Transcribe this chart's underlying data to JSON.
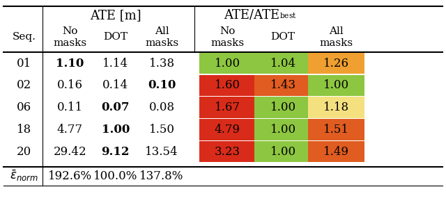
{
  "rows": [
    "01",
    "02",
    "06",
    "18",
    "20"
  ],
  "ate_values": [
    [
      "1.10",
      "1.14",
      "1.38"
    ],
    [
      "0.16",
      "0.14",
      "0.10"
    ],
    [
      "0.11",
      "0.07",
      "0.08"
    ],
    [
      "4.77",
      "1.00",
      "1.50"
    ],
    [
      "29.42",
      "9.12",
      "13.54"
    ]
  ],
  "ate_bold": [
    [
      true,
      false,
      false
    ],
    [
      false,
      false,
      true
    ],
    [
      false,
      true,
      false
    ],
    [
      false,
      true,
      false
    ],
    [
      false,
      true,
      false
    ]
  ],
  "ratio_values": [
    [
      "1.00",
      "1.04",
      "1.26"
    ],
    [
      "1.60",
      "1.43",
      "1.00"
    ],
    [
      "1.67",
      "1.00",
      "1.18"
    ],
    [
      "4.79",
      "1.00",
      "1.51"
    ],
    [
      "3.23",
      "1.00",
      "1.49"
    ]
  ],
  "ratio_colors": [
    [
      "#8dc640",
      "#8dc640",
      "#f0a030"
    ],
    [
      "#d92b1a",
      "#e05c20",
      "#8dc640"
    ],
    [
      "#d92b1a",
      "#8dc640",
      "#f5e080"
    ],
    [
      "#d92b1a",
      "#8dc640",
      "#e05c20"
    ],
    [
      "#d92b1a",
      "#8dc640",
      "#e05c20"
    ]
  ],
  "footer": [
    "ē_norm",
    "192.6%",
    "100.0%",
    "137.8%"
  ],
  "col_header1": [
    "",
    "ATE [m]",
    "",
    "",
    "ATE/ATE_best",
    "",
    ""
  ],
  "col_header2": [
    "Seq.",
    "No\nmasks",
    "DOT",
    "All\nmasks",
    "No\nmasks",
    "DOT",
    "All\nmasks"
  ],
  "bg_color": "#ffffff",
  "line_color": "#000000"
}
